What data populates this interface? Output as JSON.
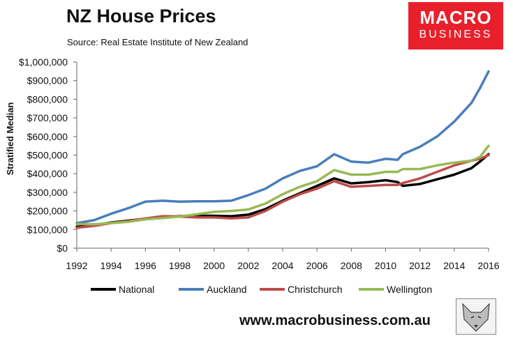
{
  "chart_data": {
    "type": "line",
    "title": "NZ House Prices",
    "subtitle": "Source: Real Estate Institute of New Zealand",
    "ylabel": "Stratified Median",
    "xlabel": "",
    "xlim": [
      1992,
      2016
    ],
    "ylim": [
      0,
      1000000
    ],
    "x_ticks": [
      "1992",
      "1994",
      "1996",
      "1998",
      "2000",
      "2002",
      "2004",
      "2006",
      "2008",
      "2010",
      "2012",
      "2014",
      "2016"
    ],
    "y_ticks": [
      "$0",
      "$100,000",
      "$200,000",
      "$300,000",
      "$400,000",
      "$500,000",
      "$600,000",
      "$700,000",
      "$800,000",
      "$900,000",
      "$1,000,000"
    ],
    "legend_position": "bottom",
    "grid": false,
    "x": [
      1992,
      1993,
      1994,
      1995,
      1996,
      1997,
      1998,
      1999,
      2000,
      2001,
      2002,
      2003,
      2004,
      2005,
      2006,
      2007,
      2008,
      2009,
      2010,
      2010.7,
      2011,
      2012,
      2013,
      2014,
      2015,
      2015.5,
      2016
    ],
    "series": [
      {
        "name": "National",
        "color": "#000000",
        "values": [
          115000,
          123000,
          138000,
          148000,
          158000,
          168000,
          172000,
          174000,
          174000,
          172000,
          180000,
          210000,
          255000,
          295000,
          335000,
          375000,
          348000,
          355000,
          365000,
          355000,
          335000,
          345000,
          370000,
          395000,
          430000,
          465000,
          505000
        ]
      },
      {
        "name": "Auckland",
        "color": "#4a7ebb",
        "values": [
          135000,
          150000,
          185000,
          215000,
          250000,
          255000,
          250000,
          252000,
          252000,
          255000,
          285000,
          320000,
          375000,
          415000,
          440000,
          505000,
          465000,
          460000,
          480000,
          475000,
          505000,
          545000,
          600000,
          680000,
          780000,
          860000,
          950000
        ]
      },
      {
        "name": "Christchurch",
        "color": "#be4b48",
        "values": [
          110000,
          120000,
          135000,
          145000,
          160000,
          172000,
          170000,
          165000,
          165000,
          160000,
          165000,
          200000,
          250000,
          290000,
          320000,
          360000,
          330000,
          335000,
          340000,
          340000,
          350000,
          375000,
          410000,
          445000,
          470000,
          480000,
          500000
        ]
      },
      {
        "name": "Wellington",
        "color": "#98b954",
        "values": [
          130000,
          128000,
          135000,
          142000,
          155000,
          162000,
          170000,
          182000,
          195000,
          200000,
          208000,
          240000,
          290000,
          330000,
          360000,
          420000,
          395000,
          395000,
          410000,
          410000,
          425000,
          425000,
          445000,
          460000,
          470000,
          490000,
          550000
        ]
      }
    ]
  },
  "logo": {
    "line1": "MACRO",
    "line2": "BUSINESS"
  },
  "footer": {
    "url": "www.macrobusiness.com.au"
  }
}
